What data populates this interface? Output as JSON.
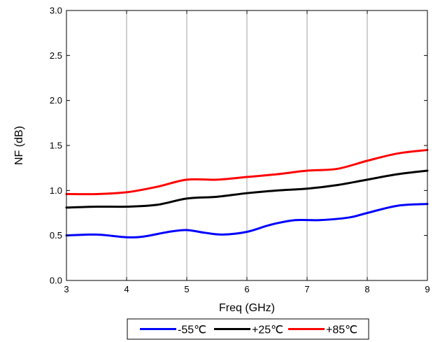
{
  "chart_data": {
    "type": "line",
    "title": "",
    "xlabel": "Freq (GHz)",
    "ylabel": "NF (dB)",
    "xlim": [
      3,
      9
    ],
    "ylim": [
      0.0,
      3.0
    ],
    "x_ticks": [
      3,
      4,
      5,
      6,
      7,
      8,
      9
    ],
    "x_tick_labels": [
      "3",
      "4",
      "5",
      "6",
      "7",
      "8",
      "9"
    ],
    "y_ticks": [
      0.0,
      0.5,
      1.0,
      1.5,
      2.0,
      2.5,
      3.0
    ],
    "y_tick_labels": [
      "0.0",
      "0.5",
      "1.0",
      "1.5",
      "2.0",
      "2.5",
      "3.0"
    ],
    "grid": "vertical",
    "legend_placement": "bottom",
    "series": [
      {
        "name": "-55℃",
        "color": "#0000ff",
        "x": [
          3.0,
          3.5,
          4.0,
          4.3,
          4.7,
          5.0,
          5.3,
          5.6,
          6.0,
          6.4,
          6.8,
          7.2,
          7.7,
          8.0,
          8.5,
          9.0
        ],
        "y": [
          0.5,
          0.51,
          0.48,
          0.49,
          0.54,
          0.56,
          0.53,
          0.51,
          0.54,
          0.62,
          0.67,
          0.67,
          0.7,
          0.75,
          0.83,
          0.85
        ]
      },
      {
        "name": "+25℃",
        "color": "#000000",
        "x": [
          3.0,
          3.5,
          4.0,
          4.5,
          5.0,
          5.5,
          6.0,
          6.5,
          7.0,
          7.5,
          8.0,
          8.5,
          9.0
        ],
        "y": [
          0.81,
          0.82,
          0.82,
          0.84,
          0.91,
          0.93,
          0.97,
          1.0,
          1.02,
          1.06,
          1.12,
          1.18,
          1.22
        ]
      },
      {
        "name": "+85℃",
        "color": "#ff0000",
        "x": [
          3.0,
          3.5,
          4.0,
          4.5,
          5.0,
          5.5,
          6.0,
          6.5,
          7.0,
          7.5,
          8.0,
          8.5,
          9.0
        ],
        "y": [
          0.96,
          0.96,
          0.98,
          1.04,
          1.12,
          1.12,
          1.15,
          1.18,
          1.22,
          1.24,
          1.33,
          1.41,
          1.45
        ]
      }
    ]
  }
}
